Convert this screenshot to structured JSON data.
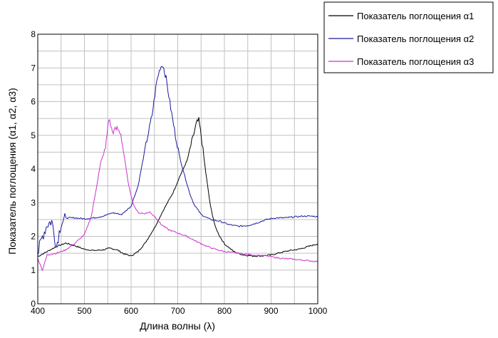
{
  "chart_data": {
    "type": "line",
    "xlabel": "Длина волны (λ)",
    "ylabel": "Показатель поглощения (α1, α2, α3)",
    "xlim": [
      400,
      1000
    ],
    "ylim": [
      0,
      8
    ],
    "x_ticks": [
      "400",
      "500",
      "600",
      "700",
      "800",
      "900",
      "1000"
    ],
    "y_ticks": [
      "0",
      "1",
      "2",
      "3",
      "4",
      "5",
      "6",
      "7",
      "8"
    ],
    "grid": true,
    "legend_position": "top-right outside",
    "series": [
      {
        "name": "Показатель поглощения α1",
        "color": "#000000",
        "points": [
          [
            400,
            1.4
          ],
          [
            420,
            1.55
          ],
          [
            440,
            1.7
          ],
          [
            460,
            1.8
          ],
          [
            480,
            1.72
          ],
          [
            500,
            1.62
          ],
          [
            520,
            1.58
          ],
          [
            540,
            1.6
          ],
          [
            555,
            1.65
          ],
          [
            570,
            1.6
          ],
          [
            585,
            1.48
          ],
          [
            600,
            1.42
          ],
          [
            615,
            1.55
          ],
          [
            630,
            1.8
          ],
          [
            650,
            2.25
          ],
          [
            670,
            2.8
          ],
          [
            690,
            3.3
          ],
          [
            705,
            3.8
          ],
          [
            720,
            4.25
          ],
          [
            730,
            4.8
          ],
          [
            740,
            5.35
          ],
          [
            745,
            5.45
          ],
          [
            750,
            5.0
          ],
          [
            760,
            3.9
          ],
          [
            770,
            2.9
          ],
          [
            780,
            2.3
          ],
          [
            790,
            2.0
          ],
          [
            800,
            1.78
          ],
          [
            820,
            1.55
          ],
          [
            840,
            1.45
          ],
          [
            860,
            1.42
          ],
          [
            880,
            1.42
          ],
          [
            900,
            1.45
          ],
          [
            920,
            1.52
          ],
          [
            940,
            1.58
          ],
          [
            960,
            1.62
          ],
          [
            980,
            1.7
          ],
          [
            1000,
            1.78
          ]
        ]
      },
      {
        "name": "Показатель поглощения α2",
        "color": "#1a1a9e",
        "points": [
          [
            400,
            1.5
          ],
          [
            410,
            2.0
          ],
          [
            420,
            2.35
          ],
          [
            430,
            2.45
          ],
          [
            440,
            1.7
          ],
          [
            450,
            2.4
          ],
          [
            460,
            2.55
          ],
          [
            480,
            2.55
          ],
          [
            500,
            2.52
          ],
          [
            520,
            2.55
          ],
          [
            540,
            2.6
          ],
          [
            560,
            2.7
          ],
          [
            580,
            2.65
          ],
          [
            600,
            2.9
          ],
          [
            615,
            3.5
          ],
          [
            630,
            4.6
          ],
          [
            645,
            5.6
          ],
          [
            655,
            6.6
          ],
          [
            662,
            7.0
          ],
          [
            668,
            7.1
          ],
          [
            675,
            6.7
          ],
          [
            685,
            5.8
          ],
          [
            695,
            5.0
          ],
          [
            705,
            4.3
          ],
          [
            715,
            3.8
          ],
          [
            725,
            3.3
          ],
          [
            735,
            2.95
          ],
          [
            750,
            2.65
          ],
          [
            770,
            2.5
          ],
          [
            790,
            2.45
          ],
          [
            810,
            2.35
          ],
          [
            830,
            2.3
          ],
          [
            850,
            2.32
          ],
          [
            870,
            2.4
          ],
          [
            890,
            2.5
          ],
          [
            910,
            2.55
          ],
          [
            930,
            2.55
          ],
          [
            950,
            2.58
          ],
          [
            970,
            2.6
          ],
          [
            990,
            2.6
          ],
          [
            1000,
            2.58
          ]
        ]
      },
      {
        "name": "Показатель поглощения α3",
        "color": "#cc33cc",
        "points": [
          [
            400,
            1.35
          ],
          [
            410,
            1.0
          ],
          [
            420,
            1.45
          ],
          [
            440,
            1.5
          ],
          [
            460,
            1.6
          ],
          [
            480,
            1.8
          ],
          [
            500,
            2.05
          ],
          [
            515,
            2.6
          ],
          [
            525,
            3.4
          ],
          [
            535,
            4.2
          ],
          [
            545,
            4.6
          ],
          [
            552,
            5.5
          ],
          [
            560,
            5.1
          ],
          [
            570,
            5.2
          ],
          [
            578,
            5.05
          ],
          [
            585,
            4.4
          ],
          [
            595,
            3.5
          ],
          [
            605,
            2.95
          ],
          [
            615,
            2.7
          ],
          [
            630,
            2.68
          ],
          [
            640,
            2.72
          ],
          [
            650,
            2.6
          ],
          [
            665,
            2.35
          ],
          [
            680,
            2.2
          ],
          [
            700,
            2.1
          ],
          [
            720,
            2.0
          ],
          [
            740,
            1.85
          ],
          [
            760,
            1.72
          ],
          [
            780,
            1.62
          ],
          [
            800,
            1.55
          ],
          [
            830,
            1.5
          ],
          [
            860,
            1.45
          ],
          [
            890,
            1.42
          ],
          [
            920,
            1.35
          ],
          [
            950,
            1.32
          ],
          [
            980,
            1.28
          ],
          [
            1000,
            1.25
          ]
        ]
      }
    ]
  }
}
